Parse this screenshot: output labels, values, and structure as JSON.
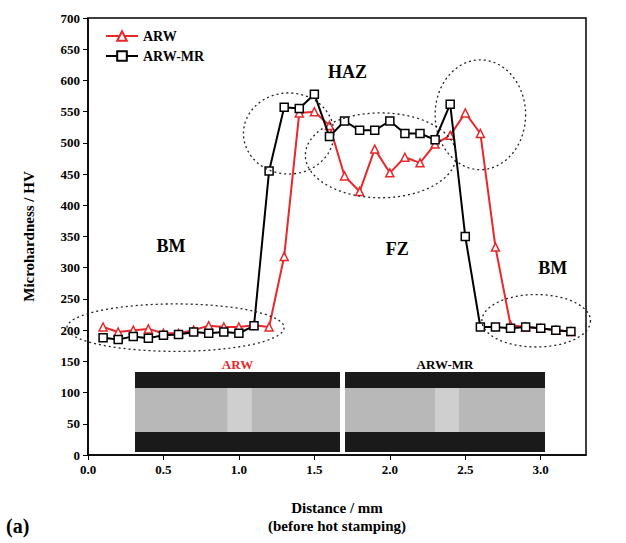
{
  "chart_data": {
    "type": "line",
    "xlabel": "Distance / mm\n(before hot stamping)",
    "ylabel": "Microhardness / HV",
    "panel": "(a)",
    "x": [
      0.1,
      0.2,
      0.3,
      0.4,
      0.5,
      0.6,
      0.7,
      0.8,
      0.9,
      1.0,
      1.1,
      1.2,
      1.3,
      1.4,
      1.5,
      1.6,
      1.7,
      1.8,
      1.9,
      2.0,
      2.1,
      2.2,
      2.3,
      2.4,
      2.5,
      2.6,
      2.7,
      2.8,
      2.9,
      3.0,
      3.1,
      3.2
    ],
    "series": [
      {
        "name": "ARW",
        "color": "#e8282b",
        "marker": "triangle",
        "line_style": "solid",
        "values": [
          205,
          197,
          200,
          202,
          195,
          195,
          200,
          207,
          205,
          205,
          208,
          205,
          318,
          548,
          550,
          528,
          447,
          422,
          490,
          452,
          477,
          468,
          498,
          512,
          548,
          515,
          333,
          208,
          205,
          203,
          200,
          198
        ]
      },
      {
        "name": "ARW-MR",
        "color": "#000000",
        "marker": "square",
        "line_style": "solid",
        "values": [
          188,
          185,
          190,
          187,
          192,
          193,
          197,
          195,
          197,
          195,
          207,
          455,
          557,
          555,
          578,
          510,
          535,
          520,
          520,
          535,
          515,
          515,
          505,
          562,
          350,
          205,
          205,
          203,
          205,
          203,
          200,
          198
        ]
      }
    ],
    "xlim": [
      0,
      3.3
    ],
    "xticks": [
      {
        "value": 0,
        "label": "0.0"
      },
      0.5,
      {
        "value": 1,
        "label": "1.0"
      },
      1.5,
      {
        "value": 2,
        "label": "2.0"
      },
      2.5,
      {
        "value": 3,
        "label": "3.0"
      }
    ],
    "ylim": [
      0,
      700
    ],
    "yticks": [
      0,
      50,
      100,
      150,
      200,
      250,
      300,
      350,
      400,
      450,
      500,
      550,
      600,
      650,
      700
    ],
    "grid": false,
    "legend": "upper left",
    "annotations": [
      {
        "text": "BM",
        "x": 0.55,
        "y": 335
      },
      {
        "text": "HAZ",
        "x": 1.72,
        "y": 614
      },
      {
        "text": "FZ",
        "x": 2.05,
        "y": 330
      },
      {
        "text": "BM",
        "x": 3.08,
        "y": 300
      }
    ],
    "insets": [
      {
        "label": "ARW",
        "color": "#e8282b"
      },
      {
        "label": "ARW-MR",
        "color": "#000000"
      }
    ]
  }
}
